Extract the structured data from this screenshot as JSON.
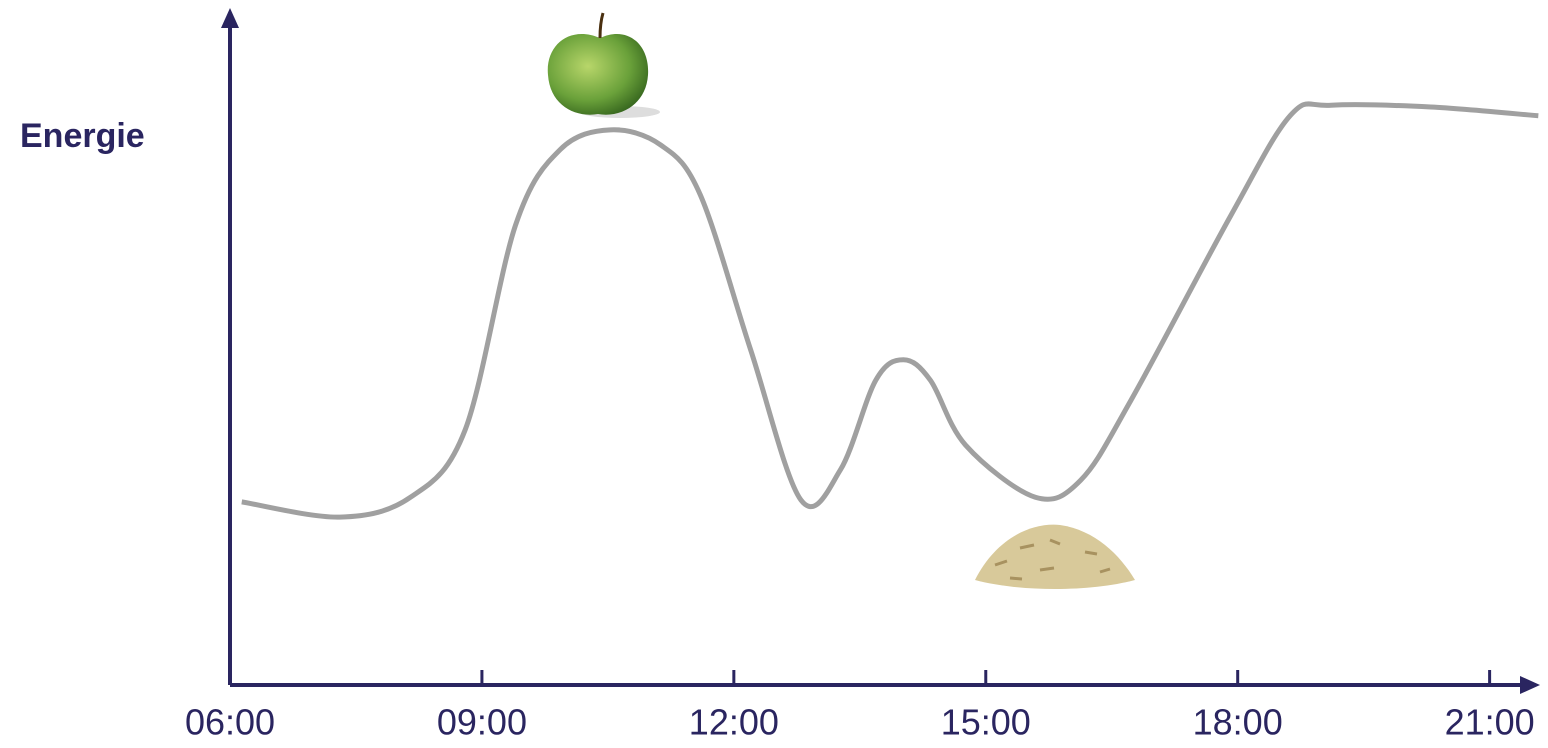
{
  "chart_data": {
    "type": "line",
    "y_label": "Energie",
    "x": [
      6.14,
      7.31,
      8.15,
      8.8,
      9.4,
      9.93,
      10.53,
      11.13,
      11.6,
      12.2,
      12.8,
      13.27,
      13.69,
      14.02,
      14.34,
      14.76,
      15.59,
      16.13,
      16.73,
      17.92,
      18.63,
      19.11,
      20.3,
      21.58
    ],
    "series": [
      {
        "color": "#a0a0a0",
        "values": [
          31.3,
          28.7,
          32.1,
          43.6,
          78.6,
          91.5,
          94.9,
          92.3,
          83.8,
          57.3,
          31.6,
          36.8,
          52.1,
          55.6,
          52.1,
          41.0,
          32.1,
          35.0,
          48.7,
          80.3,
          97.4,
          99.1,
          98.8,
          97.3
        ]
      }
    ],
    "xlim": [
      6,
      21.6
    ],
    "ylim": [
      0,
      100
    ],
    "xticks": [
      {
        "value": 6,
        "label": "06:00"
      },
      {
        "value": 9,
        "label": "09:00"
      },
      {
        "value": 12,
        "label": "12:00"
      },
      {
        "value": 15,
        "label": "15:00"
      },
      {
        "value": 18,
        "label": "18:00"
      },
      {
        "value": 21,
        "label": "21:00"
      }
    ],
    "axis_color": "#2a2560"
  }
}
